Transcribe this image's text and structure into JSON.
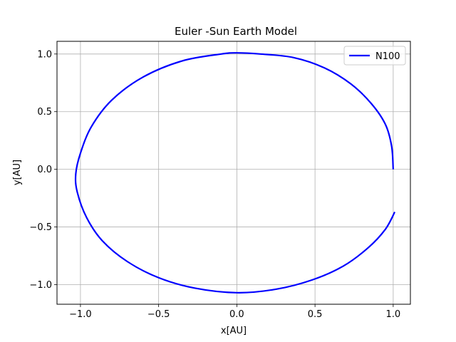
{
  "chart_data": {
    "type": "line",
    "title": "Euler -Sun Earth Model",
    "xlabel": "x[AU]",
    "ylabel": "y[AU]",
    "xlim": [
      -1.15,
      1.11
    ],
    "ylim": [
      -1.17,
      1.11
    ],
    "xticks": [
      -1.0,
      -0.5,
      0.0,
      0.5,
      1.0
    ],
    "xtick_labels": [
      "−1.0",
      "−0.5",
      "0.0",
      "0.5",
      "1.0"
    ],
    "yticks": [
      -1.0,
      -0.5,
      0.0,
      0.5,
      1.0
    ],
    "ytick_labels": [
      "−1.0",
      "−0.5",
      "0.0",
      "0.5",
      "1.0"
    ],
    "grid": true,
    "legend_position": "top-right",
    "series": [
      {
        "name": "N100",
        "color": "#0000ff",
        "points": [
          [
            1.0,
            0.0
          ],
          [
            0.99,
            0.2
          ],
          [
            0.95,
            0.39
          ],
          [
            0.86,
            0.57
          ],
          [
            0.73,
            0.74
          ],
          [
            0.56,
            0.88
          ],
          [
            0.36,
            0.97
          ],
          [
            0.15,
            1.0
          ],
          [
            0.0,
            1.01
          ],
          [
            -0.1,
            1.0
          ],
          [
            -0.35,
            0.94
          ],
          [
            -0.6,
            0.8
          ],
          [
            -0.8,
            0.6
          ],
          [
            -0.93,
            0.37
          ],
          [
            -1.0,
            0.14
          ],
          [
            -1.03,
            -0.04
          ],
          [
            -1.02,
            -0.2
          ],
          [
            -0.96,
            -0.42
          ],
          [
            -0.86,
            -0.62
          ],
          [
            -0.7,
            -0.8
          ],
          [
            -0.5,
            -0.94
          ],
          [
            -0.27,
            -1.03
          ],
          [
            0.0,
            -1.07
          ],
          [
            0.25,
            -1.04
          ],
          [
            0.48,
            -0.96
          ],
          [
            0.68,
            -0.84
          ],
          [
            0.84,
            -0.68
          ],
          [
            0.95,
            -0.52
          ],
          [
            1.01,
            -0.37
          ]
        ]
      }
    ]
  }
}
